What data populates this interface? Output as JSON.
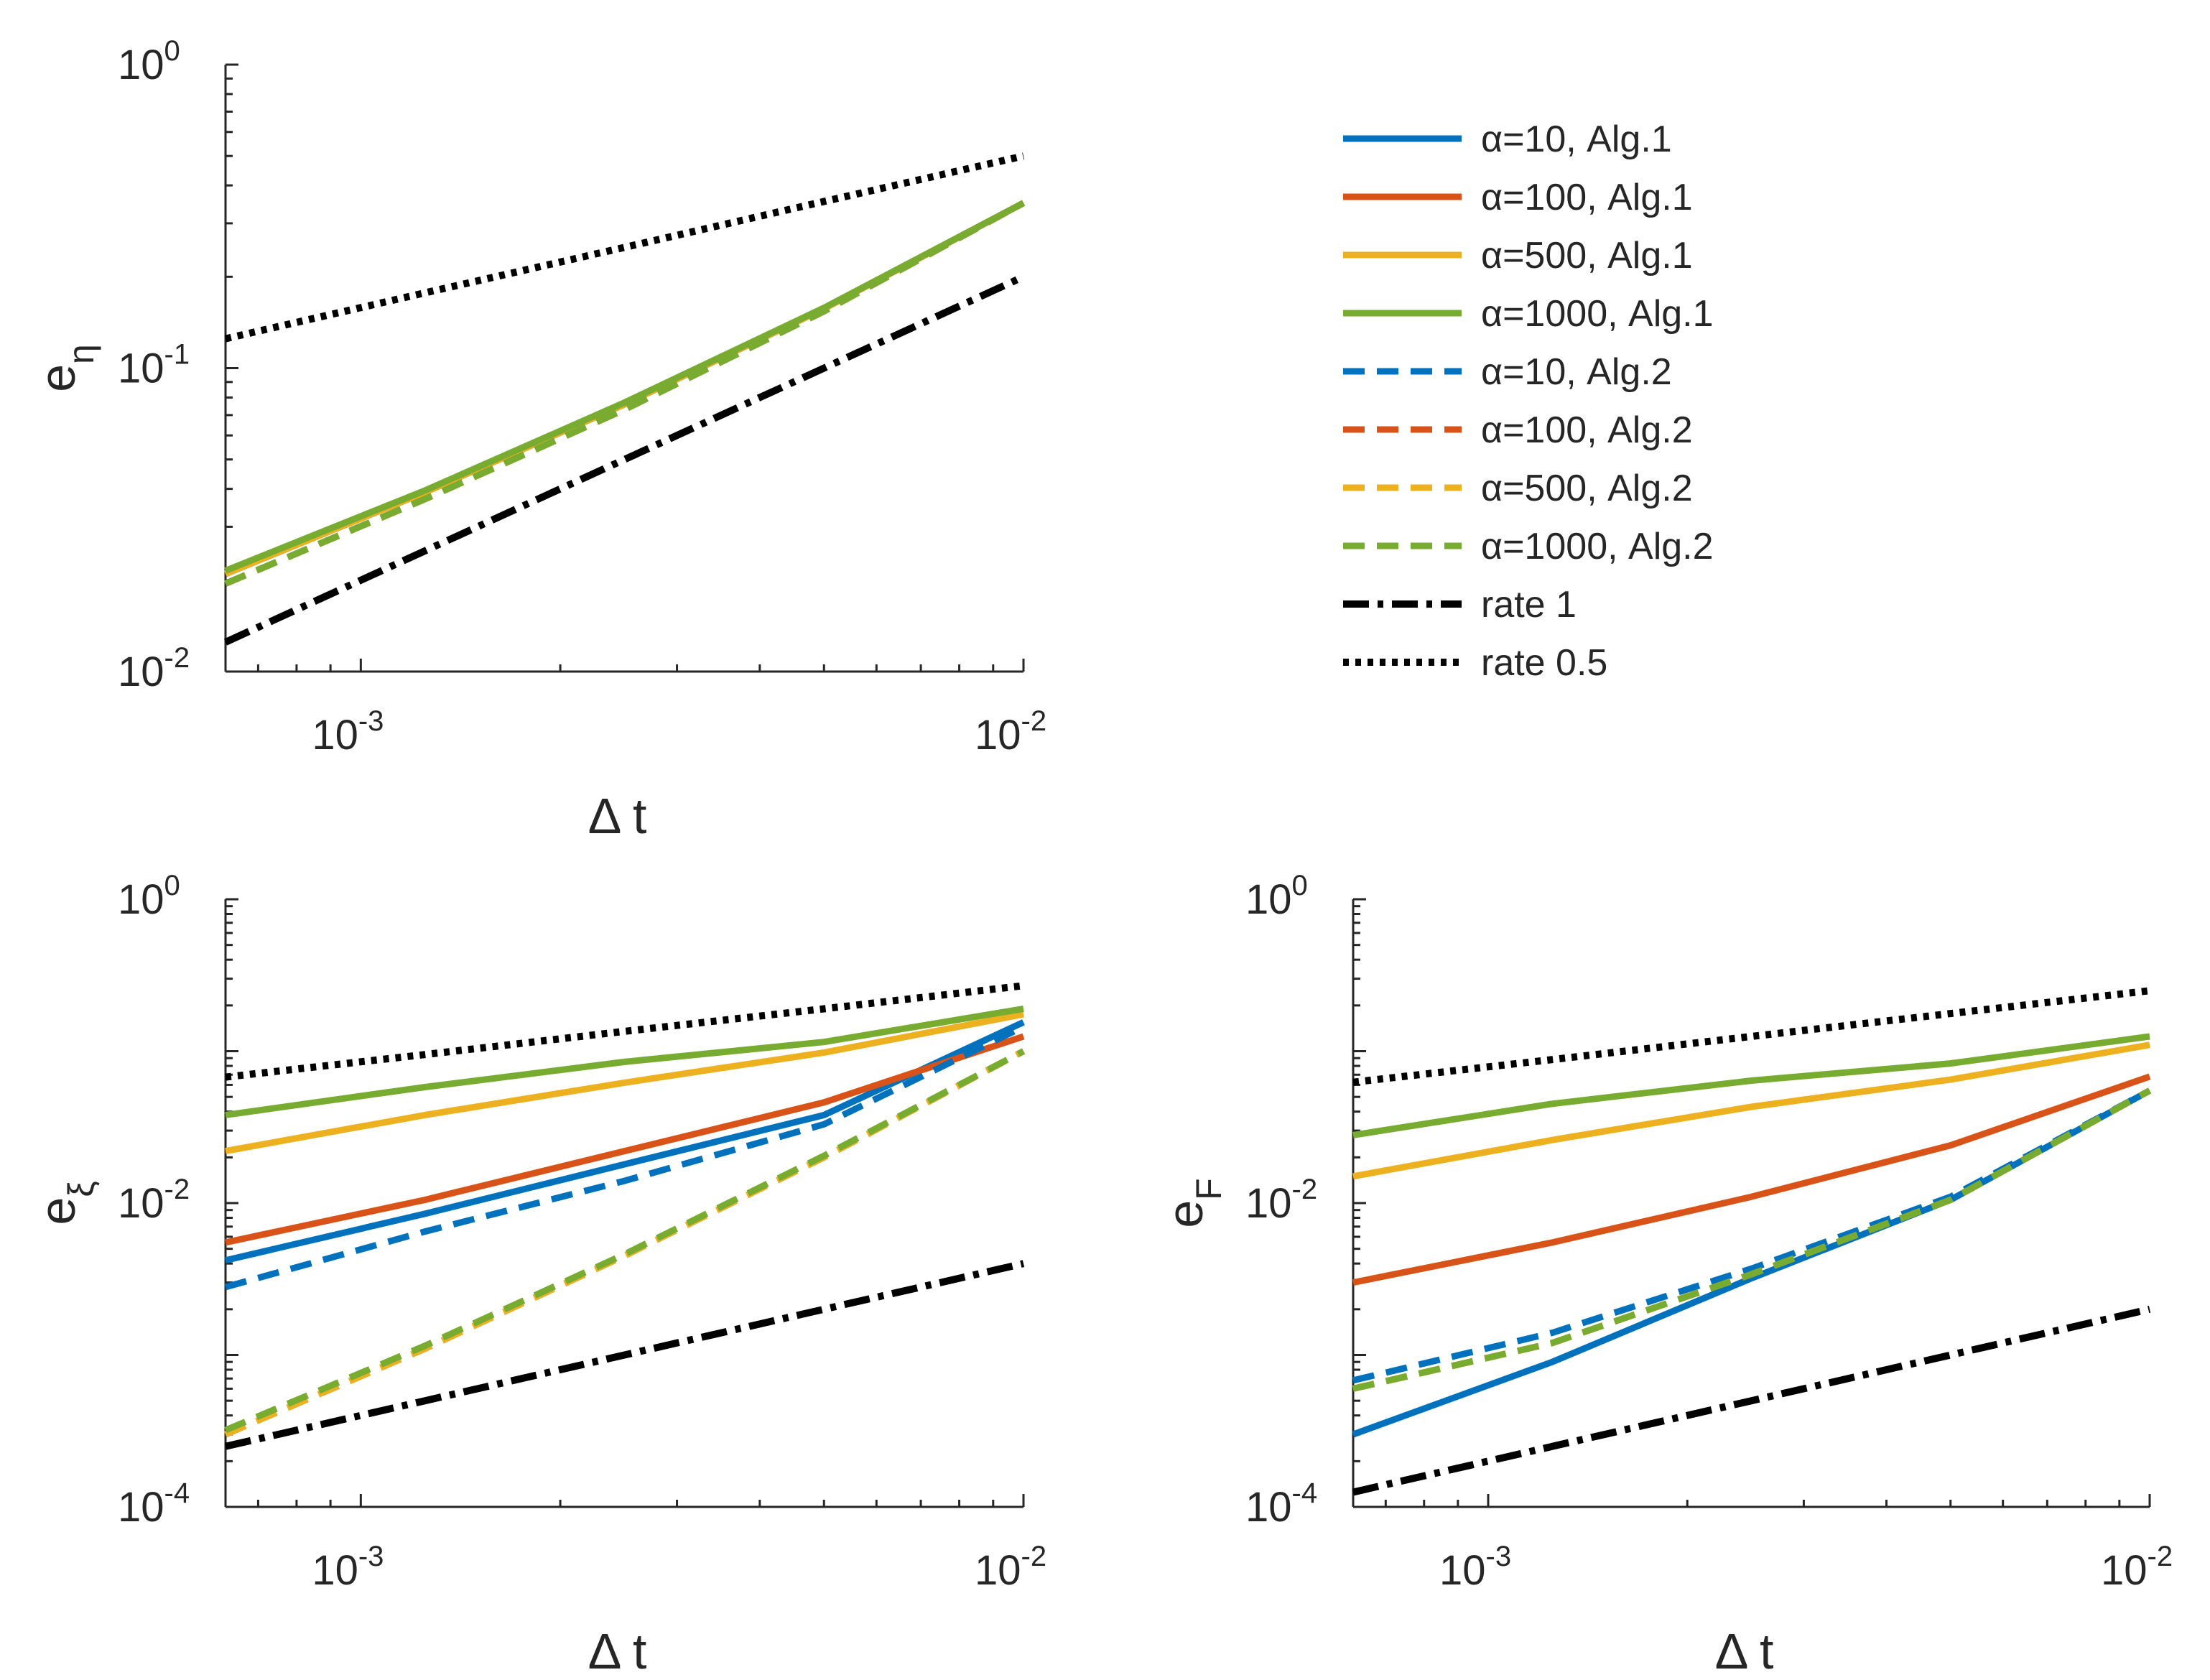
{
  "colors": {
    "blue": "#0072bd",
    "orange": "#d95319",
    "yellow": "#edb120",
    "green": "#77ac30",
    "black": "#000000"
  },
  "legend": {
    "placement": "top-right",
    "entries": [
      {
        "label": "α=10, Alg.1",
        "color": "blue",
        "style": "solid"
      },
      {
        "label": "α=100, Alg.1",
        "color": "orange",
        "style": "solid"
      },
      {
        "label": "α=500, Alg.1",
        "color": "yellow",
        "style": "solid"
      },
      {
        "label": "α=1000, Alg.1",
        "color": "green",
        "style": "solid"
      },
      {
        "label": "α=10, Alg.2",
        "color": "blue",
        "style": "dashed"
      },
      {
        "label": "α=100, Alg.2",
        "color": "orange",
        "style": "dashed"
      },
      {
        "label": "α=500, Alg.2",
        "color": "yellow",
        "style": "dashed"
      },
      {
        "label": "α=1000, Alg.2",
        "color": "green",
        "style": "dashed"
      },
      {
        "label": "rate 1",
        "color": "black",
        "style": "dashdot"
      },
      {
        "label": "rate 0.5",
        "color": "black",
        "style": "dotted"
      }
    ]
  },
  "chart_data": [
    {
      "type": "line",
      "xscale": "log",
      "yscale": "log",
      "xlim": [
        0.000625,
        0.01
      ],
      "ylim": [
        0.01,
        1
      ],
      "xticks": [
        {
          "base": "10",
          "exp": "-3"
        },
        {
          "base": "10",
          "exp": "-2"
        }
      ],
      "yticks": [
        {
          "base": "10",
          "exp": "-2"
        },
        {
          "base": "10",
          "exp": "-1"
        },
        {
          "base": "10",
          "exp": "0"
        }
      ],
      "xlabel": "Δ t",
      "ylabel": {
        "base": "e",
        "sub": "η"
      },
      "x": [
        0.000625,
        0.00125,
        0.0025,
        0.005,
        0.01
      ],
      "series": [
        {
          "name": "α=10, Alg.1",
          "color": "blue",
          "style": "solid",
          "values": [
            0.021,
            0.039,
            0.076,
            0.157,
            0.35
          ]
        },
        {
          "name": "α=100, Alg.1",
          "color": "orange",
          "style": "solid",
          "values": [
            0.021,
            0.039,
            0.076,
            0.157,
            0.35
          ]
        },
        {
          "name": "α=500, Alg.1",
          "color": "yellow",
          "style": "solid",
          "values": [
            0.021,
            0.039,
            0.076,
            0.157,
            0.35
          ]
        },
        {
          "name": "α=1000, Alg.1",
          "color": "green",
          "style": "solid",
          "values": [
            0.0215,
            0.0395,
            0.077,
            0.158,
            0.35
          ]
        },
        {
          "name": "α=10, Alg.2",
          "color": "blue",
          "style": "dashed",
          "values": [
            0.0195,
            0.037,
            0.073,
            0.154,
            0.35
          ]
        },
        {
          "name": "α=100, Alg.2",
          "color": "orange",
          "style": "dashed",
          "values": [
            0.0195,
            0.037,
            0.073,
            0.154,
            0.35
          ]
        },
        {
          "name": "α=500, Alg.2",
          "color": "yellow",
          "style": "dashed",
          "values": [
            0.0195,
            0.037,
            0.073,
            0.154,
            0.35
          ]
        },
        {
          "name": "α=1000, Alg.2",
          "color": "green",
          "style": "dashed",
          "values": [
            0.0195,
            0.037,
            0.073,
            0.154,
            0.35
          ]
        },
        {
          "name": "rate 1",
          "color": "black",
          "style": "dashdot",
          "values": [
            0.0125,
            0.025,
            0.05,
            0.1,
            0.2
          ]
        },
        {
          "name": "rate 0.5",
          "color": "black",
          "style": "dotted",
          "values": [
            0.125,
            0.177,
            0.25,
            0.354,
            0.5
          ]
        }
      ]
    },
    {
      "type": "line",
      "xscale": "log",
      "yscale": "log",
      "xlim": [
        0.000625,
        0.01
      ],
      "ylim": [
        0.0001,
        1
      ],
      "xticks": [
        {
          "base": "10",
          "exp": "-3"
        },
        {
          "base": "10",
          "exp": "-2"
        }
      ],
      "yticks": [
        {
          "base": "10",
          "exp": "-4"
        },
        {
          "base": "10",
          "exp": "-2"
        },
        {
          "base": "10",
          "exp": "0"
        }
      ],
      "xlabel": "Δ t",
      "ylabel": {
        "base": "e",
        "sub": "ξ"
      },
      "x": [
        0.000625,
        0.00125,
        0.0025,
        0.005,
        0.01
      ],
      "series": [
        {
          "name": "α=10, Alg.1",
          "color": "blue",
          "style": "solid",
          "values": [
            0.0042,
            0.0085,
            0.018,
            0.038,
            0.155
          ]
        },
        {
          "name": "α=100, Alg.1",
          "color": "orange",
          "style": "solid",
          "values": [
            0.0055,
            0.0105,
            0.022,
            0.046,
            0.125
          ]
        },
        {
          "name": "α=500, Alg.1",
          "color": "yellow",
          "style": "solid",
          "values": [
            0.022,
            0.038,
            0.062,
            0.098,
            0.175
          ]
        },
        {
          "name": "α=1000, Alg.1",
          "color": "green",
          "style": "solid",
          "values": [
            0.038,
            0.058,
            0.085,
            0.115,
            0.19
          ]
        },
        {
          "name": "α=10, Alg.2",
          "color": "blue",
          "style": "dashed",
          "values": [
            0.0028,
            0.0065,
            0.014,
            0.033,
            0.145
          ]
        },
        {
          "name": "α=100, Alg.2",
          "color": "orange",
          "style": "dashed",
          "values": [
            0.0003,
            0.0011,
            0.0045,
            0.02,
            0.1
          ]
        },
        {
          "name": "α=500, Alg.2",
          "color": "yellow",
          "style": "dashed",
          "values": [
            0.0003,
            0.0011,
            0.0045,
            0.02,
            0.1
          ]
        },
        {
          "name": "α=1000, Alg.2",
          "color": "green",
          "style": "dashed",
          "values": [
            0.00032,
            0.00115,
            0.0046,
            0.0205,
            0.1
          ]
        },
        {
          "name": "rate 1",
          "color": "black",
          "style": "dashdot",
          "values": [
            0.00025,
            0.0005,
            0.001,
            0.002,
            0.004
          ]
        },
        {
          "name": "rate 0.5",
          "color": "black",
          "style": "dotted",
          "values": [
            0.0675,
            0.095,
            0.135,
            0.19,
            0.27
          ]
        }
      ]
    },
    {
      "type": "line",
      "xscale": "log",
      "yscale": "log",
      "xlim": [
        0.000625,
        0.01
      ],
      "ylim": [
        0.0001,
        1
      ],
      "xticks": [
        {
          "base": "10",
          "exp": "-3"
        },
        {
          "base": "10",
          "exp": "-2"
        }
      ],
      "yticks": [
        {
          "base": "10",
          "exp": "-4"
        },
        {
          "base": "10",
          "exp": "-2"
        },
        {
          "base": "10",
          "exp": "0"
        }
      ],
      "xlabel": "Δ t",
      "ylabel": {
        "base": "e",
        "sub": "F"
      },
      "x": [
        0.000625,
        0.00125,
        0.0025,
        0.005,
        0.01
      ],
      "series": [
        {
          "name": "α=10, Alg.1",
          "color": "blue",
          "style": "solid",
          "values": [
            0.0003,
            0.0009,
            0.0032,
            0.0105,
            0.055
          ]
        },
        {
          "name": "α=100, Alg.1",
          "color": "orange",
          "style": "solid",
          "values": [
            0.003,
            0.0055,
            0.011,
            0.024,
            0.068
          ]
        },
        {
          "name": "α=500, Alg.1",
          "color": "yellow",
          "style": "solid",
          "values": [
            0.015,
            0.026,
            0.043,
            0.065,
            0.11
          ]
        },
        {
          "name": "α=1000, Alg.1",
          "color": "green",
          "style": "solid",
          "values": [
            0.028,
            0.045,
            0.064,
            0.083,
            0.125
          ]
        },
        {
          "name": "α=10, Alg.2",
          "color": "blue",
          "style": "dashed",
          "values": [
            0.00068,
            0.0014,
            0.0037,
            0.011,
            0.055
          ]
        },
        {
          "name": "α=100, Alg.2",
          "color": "orange",
          "style": "dashed",
          "values": [
            0.0006,
            0.0012,
            0.0034,
            0.0105,
            0.055
          ]
        },
        {
          "name": "α=500, Alg.2",
          "color": "yellow",
          "style": "dashed",
          "values": [
            0.0006,
            0.0012,
            0.0034,
            0.0105,
            0.055
          ]
        },
        {
          "name": "α=1000, Alg.2",
          "color": "green",
          "style": "dashed",
          "values": [
            0.0006,
            0.0012,
            0.0034,
            0.0105,
            0.055
          ]
        },
        {
          "name": "rate 1",
          "color": "black",
          "style": "dashdot",
          "values": [
            0.000125,
            0.00025,
            0.0005,
            0.001,
            0.002
          ]
        },
        {
          "name": "rate 0.5",
          "color": "black",
          "style": "dotted",
          "values": [
            0.0625,
            0.088,
            0.125,
            0.177,
            0.25
          ]
        }
      ]
    }
  ]
}
